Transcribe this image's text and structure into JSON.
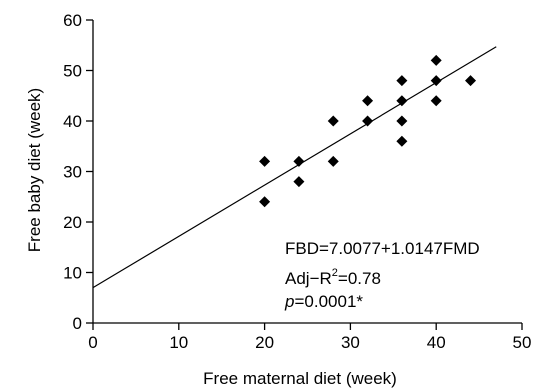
{
  "chart_data": {
    "type": "scatter",
    "title": "",
    "xlabel": "Free maternal diet (week)",
    "ylabel": "Free baby diet (week)",
    "xlim": [
      0,
      50
    ],
    "ylim": [
      0,
      60
    ],
    "xticks": [
      0,
      10,
      20,
      30,
      40,
      50
    ],
    "yticks": [
      0,
      10,
      20,
      30,
      40,
      50,
      60
    ],
    "xtick_labels": [
      "0",
      "10",
      "20",
      "30",
      "40",
      "50"
    ],
    "ytick_labels": [
      "0",
      "10",
      "20",
      "30",
      "40",
      "50",
      "60"
    ],
    "grid": false,
    "marker": "diamond",
    "marker_color": "#000000",
    "points": [
      {
        "x": 20,
        "y": 32
      },
      {
        "x": 20,
        "y": 24
      },
      {
        "x": 24,
        "y": 32
      },
      {
        "x": 24,
        "y": 28
      },
      {
        "x": 28,
        "y": 40
      },
      {
        "x": 28,
        "y": 32
      },
      {
        "x": 32,
        "y": 44
      },
      {
        "x": 32,
        "y": 40
      },
      {
        "x": 36,
        "y": 48
      },
      {
        "x": 36,
        "y": 44
      },
      {
        "x": 36,
        "y": 40
      },
      {
        "x": 36,
        "y": 36
      },
      {
        "x": 40,
        "y": 52
      },
      {
        "x": 40,
        "y": 48
      },
      {
        "x": 40,
        "y": 44
      },
      {
        "x": 44,
        "y": 48
      }
    ],
    "trendline": {
      "intercept": 7.0077,
      "slope": 1.0147,
      "x_range": [
        0,
        47
      ]
    },
    "annotations": {
      "equation": "FBD=7.0077+1.0147FMD",
      "adj_r2_prefix": "Adj−R",
      "adj_r2_sup": "2",
      "adj_r2_value": "=0.78",
      "p_symbol": "p",
      "p_value": "=0.0001*"
    }
  }
}
